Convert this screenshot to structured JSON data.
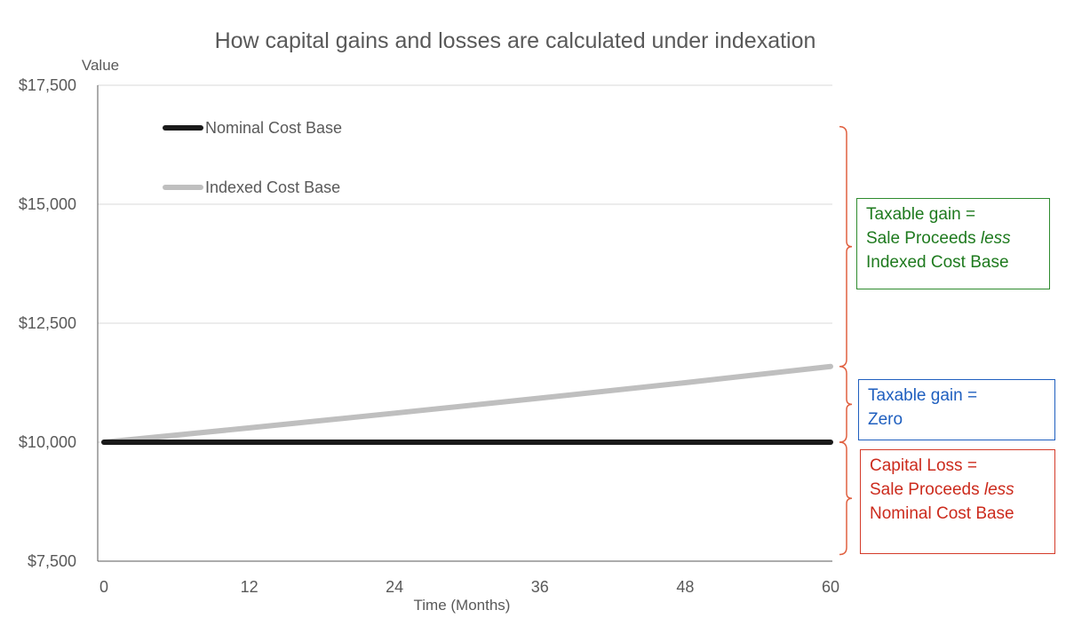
{
  "chart_data": {
    "type": "line",
    "title": "How capital gains and losses are calculated under indexation",
    "ylabel": "Value",
    "xlabel": "Time (Months)",
    "ylim": [
      7500,
      17500
    ],
    "xlim": [
      0,
      60
    ],
    "yticks": [
      7500,
      10000,
      12500,
      15000,
      17500
    ],
    "ytick_labels": [
      "$7,500",
      "$10,000",
      "$12,500",
      "$15,000",
      "$17,500"
    ],
    "xticks": [
      0,
      12,
      24,
      36,
      48,
      60
    ],
    "xtick_labels": [
      "0",
      "12",
      "24",
      "36",
      "48",
      "60"
    ],
    "grid": "horizontal",
    "legend_position": "top-left",
    "series": [
      {
        "name": "Nominal Cost Base",
        "color": "#1a1a1a",
        "x": [
          0,
          60
        ],
        "values": [
          10000,
          10000
        ]
      },
      {
        "name": "Indexed Cost Base",
        "color": "#bfbfbf",
        "x": [
          0,
          12,
          24,
          36,
          48,
          60
        ],
        "values": [
          10000,
          10300,
          10610,
          10925,
          11250,
          11590
        ]
      }
    ],
    "annotations": [
      {
        "id": "gain",
        "color": "#2e8b2e",
        "bracket_color": "#e06040",
        "range": [
          11590,
          16630
        ],
        "lines": [
          "Taxable gain =",
          "Sale Proceeds ",
          "less",
          " Indexed Cost Base"
        ]
      },
      {
        "id": "zero",
        "color": "#1f5fbf",
        "bracket_color": "#e06040",
        "range": [
          10000,
          11590
        ],
        "lines": [
          "Taxable gain =",
          "Zero"
        ]
      },
      {
        "id": "loss",
        "color": "#cc2b1d",
        "bracket_color": "#e06040",
        "range": [
          7640,
          10000
        ],
        "lines": [
          "Capital Loss =",
          "Sale Proceeds ",
          "less",
          "Nominal Cost Base"
        ]
      }
    ]
  },
  "text": {
    "gain_line1": "Taxable gain =",
    "gain_line2a": "Sale Proceeds ",
    "gain_line2b": "less",
    "gain_line3": "Indexed Cost Base",
    "zero_line1": "Taxable gain =",
    "zero_line2": "Zero",
    "loss_line1": "Capital Loss =",
    "loss_line2a": "Sale Proceeds ",
    "loss_line2b": "less",
    "loss_line3": "Nominal Cost Base"
  }
}
